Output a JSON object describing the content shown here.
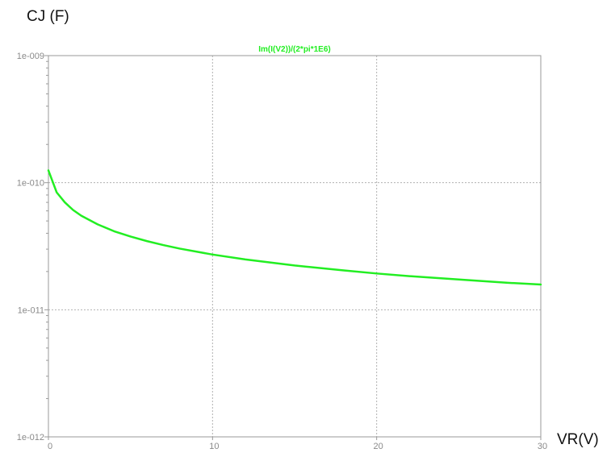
{
  "chart_data": {
    "type": "line",
    "ylabel": "CJ (F)",
    "xlabel": "VR(V)",
    "xlim": [
      0,
      30
    ],
    "ylim": [
      1e-12,
      1e-09
    ],
    "y_scale": "log",
    "grid": true,
    "grid_style": "dotted",
    "x_ticks": [
      0,
      10,
      20,
      30
    ],
    "x_tick_labels": [
      "0",
      "10",
      "20",
      "30"
    ],
    "y_ticks": [
      1e-12,
      1e-11,
      1e-10,
      1e-09
    ],
    "y_tick_labels": [
      "1e-012",
      "1e-011",
      "1e-010",
      "1e-009"
    ],
    "series": [
      {
        "name": "Im(I(V2))/(2*pi*1E6)",
        "color": "#22ee22",
        "x": [
          0,
          0.5,
          1,
          1.5,
          2,
          3,
          4,
          5,
          6,
          7,
          8,
          10,
          12,
          15,
          18,
          20,
          22,
          25,
          28,
          30
        ],
        "y": [
          1.25e-10,
          8.4e-11,
          7e-11,
          6.1e-11,
          5.5e-11,
          4.7e-11,
          4.15e-11,
          3.77e-11,
          3.47e-11,
          3.23e-11,
          3.03e-11,
          2.72e-11,
          2.49e-11,
          2.23e-11,
          2.04e-11,
          1.93e-11,
          1.84e-11,
          1.73e-11,
          1.63e-11,
          1.58e-11
        ]
      }
    ]
  }
}
